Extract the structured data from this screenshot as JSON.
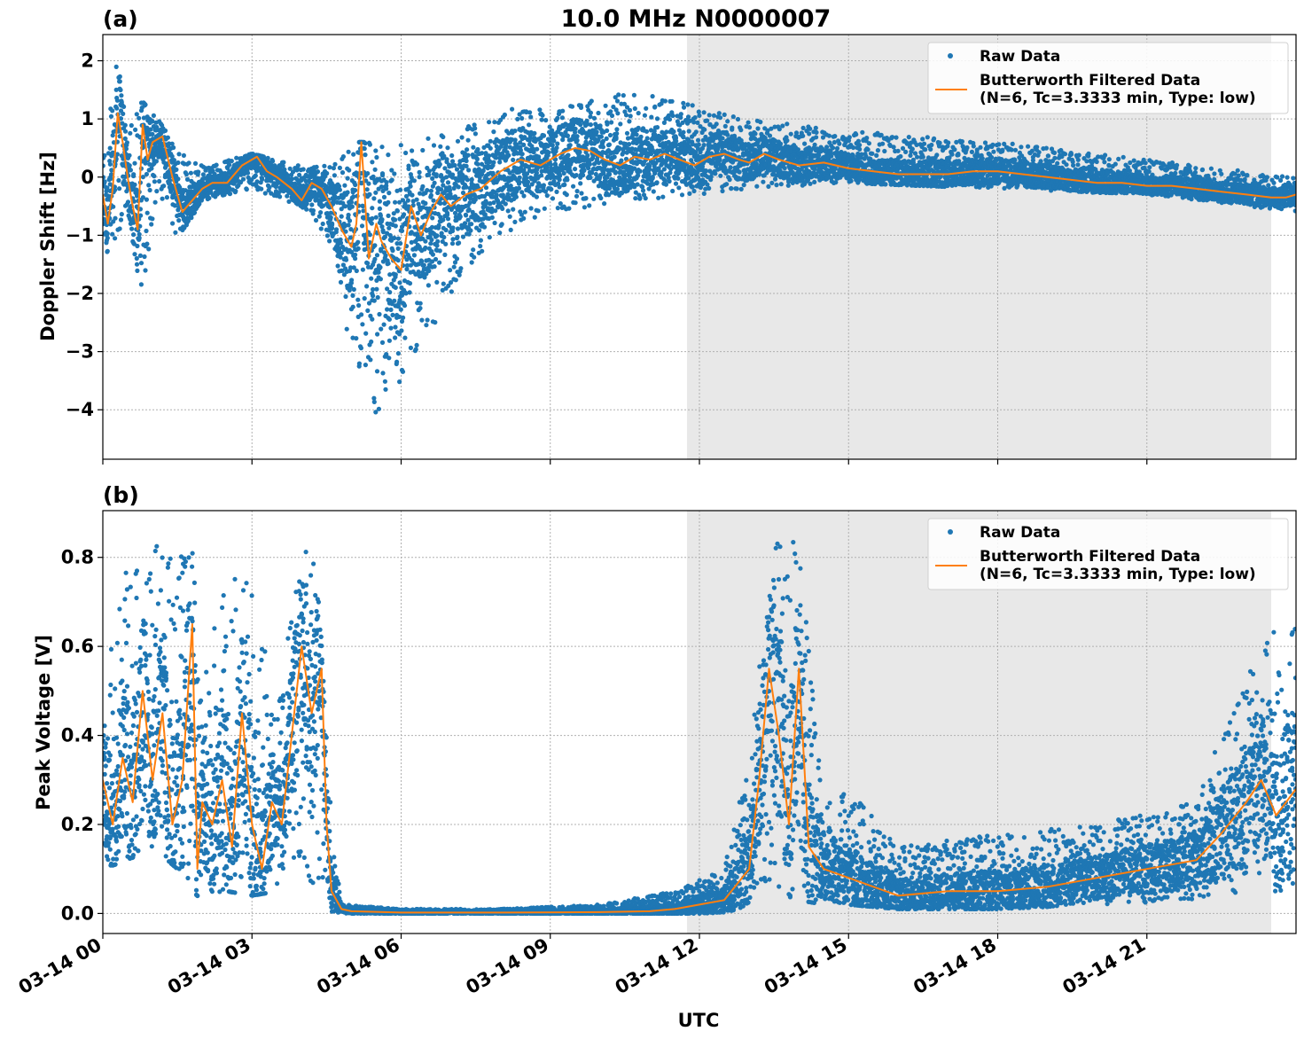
{
  "figure": {
    "title": "10.0 MHz N0000007",
    "xlabel": "UTC",
    "x_ticks": [
      "03-14 00",
      "03-14 03",
      "03-14 06",
      "03-14 09",
      "03-14 12",
      "03-14 15",
      "03-14 18",
      "03-14 21"
    ],
    "colors": {
      "raw": "#1f77b4",
      "filtered": "#ff7f0e",
      "shade": "#e8e8e8",
      "grid": "#b0b0b0"
    }
  },
  "chart_data": [
    {
      "type": "scatter",
      "panel_label": "(a)",
      "ylabel": "Doppler Shift [Hz]",
      "xlim": [
        0,
        24
      ],
      "ylim": [
        -4.85,
        2.45
      ],
      "y_ticks": [
        2,
        1,
        0,
        -1,
        -2,
        -3,
        -4
      ],
      "y_tick_labels": [
        "2",
        "1",
        "0",
        "−1",
        "−2",
        "−3",
        "−4"
      ],
      "shaded_span": [
        11.75,
        23.5
      ],
      "legend": {
        "position": "top-right",
        "raw_label": "Raw Data",
        "filtered_label_line1": "Butterworth Filtered Data",
        "filtered_label_line2": "(N=6, Tc=3.3333 min, Type: low)"
      },
      "series": [
        {
          "name": "Butterworth Filtered Data",
          "x": [
            0,
            0.1,
            0.2,
            0.3,
            0.4,
            0.5,
            0.6,
            0.7,
            0.8,
            0.9,
            1.0,
            1.2,
            1.4,
            1.6,
            1.8,
            2.0,
            2.2,
            2.5,
            2.8,
            3.1,
            3.3,
            3.5,
            3.8,
            4.0,
            4.2,
            4.4,
            4.6,
            4.8,
            5.0,
            5.1,
            5.2,
            5.35,
            5.5,
            5.6,
            5.8,
            6.0,
            6.2,
            6.4,
            6.6,
            6.8,
            7.0,
            7.3,
            7.6,
            8.0,
            8.4,
            8.8,
            9.2,
            9.5,
            9.8,
            10.1,
            10.4,
            10.7,
            11.0,
            11.3,
            11.6,
            11.9,
            12.2,
            12.5,
            12.8,
            13.0,
            13.3,
            13.6,
            14.0,
            14.5,
            15.0,
            15.5,
            16.0,
            16.5,
            17.0,
            17.5,
            18.0,
            18.5,
            19.0,
            19.5,
            20.0,
            20.5,
            21.0,
            21.5,
            22.0,
            22.5,
            23.0,
            23.5,
            23.8,
            24.0
          ],
          "y": [
            -0.3,
            -0.8,
            -0.2,
            1.1,
            0.6,
            0.0,
            -0.5,
            -0.9,
            0.9,
            0.3,
            0.6,
            0.7,
            0.0,
            -0.6,
            -0.4,
            -0.2,
            -0.1,
            -0.1,
            0.2,
            0.35,
            0.1,
            0.0,
            -0.2,
            -0.4,
            -0.1,
            -0.2,
            -0.5,
            -0.9,
            -1.2,
            -0.8,
            0.6,
            -1.4,
            -0.8,
            -1.1,
            -1.4,
            -1.6,
            -0.5,
            -1.0,
            -0.6,
            -0.3,
            -0.5,
            -0.3,
            -0.2,
            0.1,
            0.3,
            0.2,
            0.4,
            0.5,
            0.45,
            0.3,
            0.2,
            0.35,
            0.3,
            0.4,
            0.3,
            0.2,
            0.35,
            0.4,
            0.3,
            0.25,
            0.4,
            0.3,
            0.2,
            0.25,
            0.15,
            0.1,
            0.05,
            0.05,
            0.05,
            0.1,
            0.1,
            0.05,
            0.0,
            -0.05,
            -0.1,
            -0.1,
            -0.15,
            -0.15,
            -0.2,
            -0.25,
            -0.3,
            -0.35,
            -0.35,
            -0.3
          ]
        },
        {
          "name": "Raw Data",
          "spread_x": [
            0,
            0.3,
            0.5,
            0.8,
            1.1,
            1.5,
            2.0,
            3.0,
            4.0,
            4.5,
            5.0,
            5.5,
            6.0,
            6.5,
            7.0,
            7.5,
            8.0,
            9.0,
            10.0,
            11.0,
            12.0,
            13.0,
            15.0,
            18.0,
            21.0,
            24.0
          ],
          "spread_lo": [
            -1.4,
            -1.0,
            -0.9,
            -2.0,
            -0.2,
            -1.1,
            -0.4,
            -0.2,
            -0.5,
            -1.0,
            -3.0,
            -4.2,
            -3.5,
            -2.8,
            -2.0,
            -1.5,
            -1.0,
            -0.6,
            -0.5,
            -0.4,
            -0.3,
            -0.2,
            -0.1,
            -0.2,
            -0.3,
            -0.6
          ],
          "spread_hi": [
            0.5,
            2.1,
            1.0,
            1.3,
            1.0,
            0.5,
            0.2,
            0.4,
            0.2,
            0.2,
            0.6,
            0.6,
            0.6,
            0.7,
            0.8,
            1.0,
            1.2,
            1.2,
            1.4,
            1.5,
            1.2,
            1.0,
            0.8,
            0.6,
            0.3,
            0.0
          ]
        }
      ]
    },
    {
      "type": "scatter",
      "panel_label": "(b)",
      "ylabel": "Peak Voltage [V]",
      "xlim": [
        0,
        24
      ],
      "ylim": [
        -0.045,
        0.905
      ],
      "y_ticks": [
        0.8,
        0.6,
        0.4,
        0.2,
        0.0
      ],
      "y_tick_labels": [
        "0.8",
        "0.6",
        "0.4",
        "0.2",
        "0.0"
      ],
      "shaded_span": [
        11.75,
        23.5
      ],
      "legend": {
        "position": "top-right",
        "raw_label": "Raw Data",
        "filtered_label_line1": "Butterworth Filtered Data",
        "filtered_label_line2": "(N=6, Tc=3.3333 min, Type: low)"
      },
      "series": [
        {
          "name": "Butterworth Filtered Data",
          "x": [
            0,
            0.2,
            0.4,
            0.6,
            0.8,
            1.0,
            1.2,
            1.4,
            1.6,
            1.8,
            1.9,
            2.0,
            2.2,
            2.4,
            2.6,
            2.8,
            3.0,
            3.2,
            3.4,
            3.6,
            3.8,
            4.0,
            4.2,
            4.4,
            4.5,
            4.6,
            4.8,
            5.0,
            6.0,
            8.0,
            10.0,
            11.0,
            11.5,
            12.0,
            12.5,
            13.0,
            13.2,
            13.4,
            13.6,
            13.8,
            14.0,
            14.2,
            14.5,
            15.0,
            15.5,
            16.0,
            17.0,
            18.0,
            19.0,
            20.0,
            21.0,
            22.0,
            22.5,
            23.0,
            23.3,
            23.6,
            24.0
          ],
          "y": [
            0.3,
            0.2,
            0.35,
            0.25,
            0.5,
            0.3,
            0.45,
            0.2,
            0.3,
            0.65,
            0.1,
            0.25,
            0.2,
            0.3,
            0.15,
            0.45,
            0.2,
            0.1,
            0.25,
            0.2,
            0.4,
            0.6,
            0.45,
            0.55,
            0.2,
            0.05,
            0.01,
            0.005,
            0.002,
            0.002,
            0.003,
            0.005,
            0.01,
            0.02,
            0.03,
            0.1,
            0.3,
            0.55,
            0.4,
            0.2,
            0.55,
            0.15,
            0.1,
            0.08,
            0.06,
            0.04,
            0.05,
            0.05,
            0.06,
            0.08,
            0.1,
            0.12,
            0.18,
            0.25,
            0.3,
            0.22,
            0.28
          ]
        },
        {
          "name": "Raw Data",
          "spread_x": [
            0,
            0.5,
            1.0,
            1.5,
            1.8,
            2.0,
            2.5,
            3.0,
            3.5,
            4.0,
            4.3,
            4.6,
            4.8,
            6.0,
            8.0,
            10.0,
            11.5,
            12.5,
            13.0,
            13.5,
            14.0,
            14.5,
            15.0,
            16.0,
            18.0,
            20.0,
            22.0,
            23.0,
            24.0
          ],
          "spread_lo": [
            0.1,
            0.12,
            0.15,
            0.1,
            0.05,
            0.03,
            0.05,
            0.04,
            0.05,
            0.1,
            0.05,
            0.0,
            0.0,
            0.0,
            0.0,
            0.0,
            0.0,
            0.0,
            0.02,
            0.05,
            0.03,
            0.02,
            0.02,
            0.01,
            0.01,
            0.02,
            0.03,
            0.05,
            0.05
          ],
          "spread_hi": [
            0.5,
            0.8,
            0.86,
            0.8,
            0.82,
            0.5,
            0.8,
            0.74,
            0.45,
            0.84,
            0.8,
            0.2,
            0.02,
            0.01,
            0.01,
            0.02,
            0.05,
            0.1,
            0.35,
            0.85,
            0.83,
            0.25,
            0.28,
            0.15,
            0.18,
            0.2,
            0.25,
            0.57,
            0.69
          ]
        }
      ]
    }
  ]
}
